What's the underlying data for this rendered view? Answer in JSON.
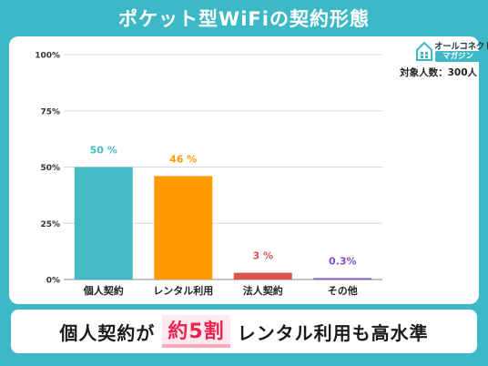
{
  "header": {
    "title": "ポケット型WiFiの契約形態"
  },
  "logo": {
    "line1": "オールコネクト",
    "line2": "マガジン"
  },
  "respondents": "対象人数：300人",
  "banner": {
    "before": "個人契約が",
    "highlight": "約5割",
    "after": "レンタル利用も高水準"
  },
  "colors": {
    "frame": "#3db8c6",
    "highlight": "#e8264f"
  },
  "chart_data": {
    "type": "bar",
    "categories": [
      "個人契約",
      "レンタル利用",
      "法人契約",
      "その他"
    ],
    "values": [
      50,
      46,
      3,
      0.3
    ],
    "value_labels": [
      "50 %",
      "46 %",
      "3 %",
      "0.3%"
    ],
    "colors": [
      "#45bcc5",
      "#ff9a00",
      "#d9534f",
      "#7c4dcc"
    ],
    "ylim": [
      0,
      100
    ],
    "yticks": [
      0,
      25,
      50,
      75,
      100
    ],
    "ytick_labels": [
      "0%",
      "25%",
      "50%",
      "75%",
      "100%"
    ],
    "title": "",
    "xlabel": "",
    "ylabel": "",
    "grid": true,
    "legend": "none"
  }
}
